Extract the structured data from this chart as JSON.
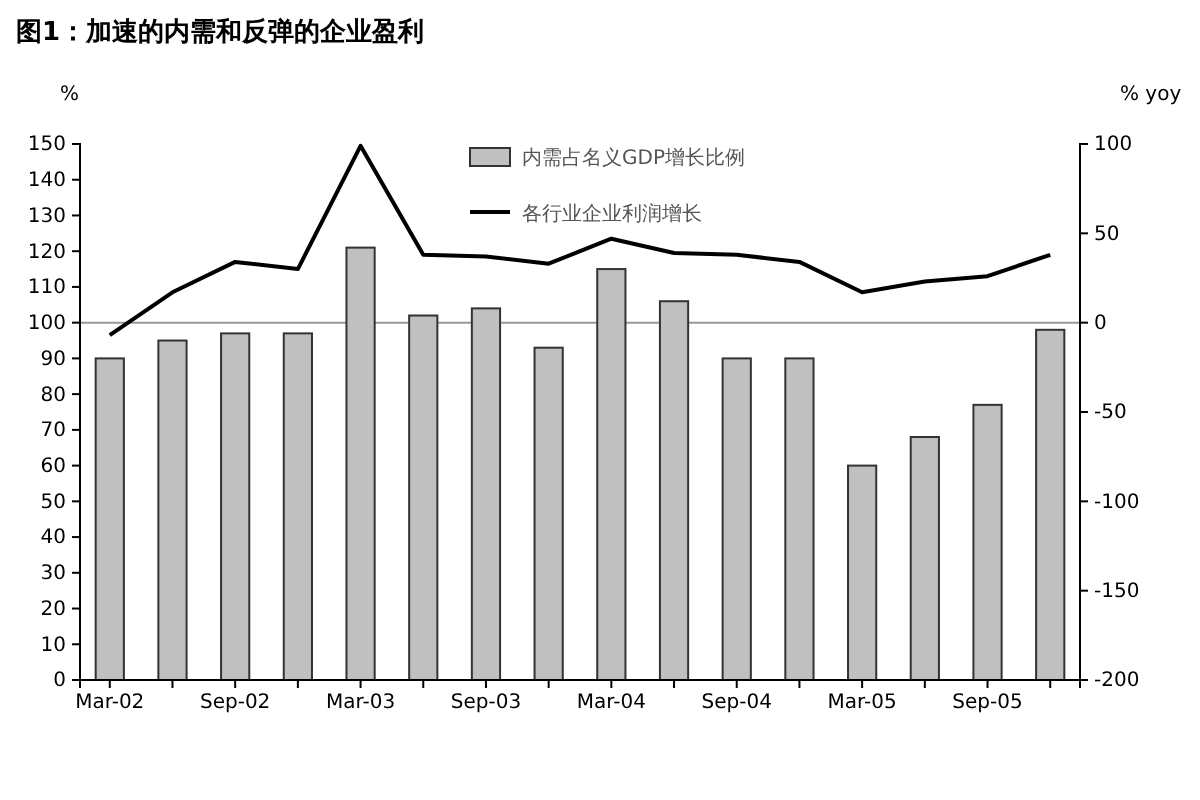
{
  "chart_data": {
    "type": "bar",
    "title": "图1：加速的内需和反弹的企业盈利",
    "ylabel": "%",
    "y2label": "% yoy",
    "categories": [
      "Mar-02",
      null,
      "Sep-02",
      null,
      "Mar-03",
      null,
      "Sep-03",
      null,
      "Mar-04",
      null,
      "Sep-04",
      null,
      "Mar-05",
      null,
      "Sep-05",
      null
    ],
    "series": [
      {
        "name": "内需占名义GDP增长比例",
        "color": "#c0c0c0",
        "values": [
          90,
          95,
          97,
          97,
          121,
          102,
          104,
          93,
          115,
          106,
          90,
          90,
          60,
          68,
          77,
          98
        ]
      },
      {
        "name": "各行业企业利润增长",
        "type": "line",
        "axis": "y2",
        "color": "#000000",
        "values": [
          -7,
          17,
          34,
          30,
          99,
          38,
          37,
          33,
          47,
          39,
          38,
          34,
          17,
          23,
          26,
          38
        ]
      }
    ],
    "ylim": [
      0,
      150
    ],
    "yticks": [
      0,
      10,
      20,
      30,
      40,
      50,
      60,
      70,
      80,
      90,
      100,
      110,
      120,
      130,
      140,
      150
    ],
    "y2lim": [
      -200,
      100
    ],
    "y2ticks": [
      -200,
      -150,
      -100,
      -50,
      0,
      50,
      100
    ],
    "ref_lines": [
      {
        "axis": "y",
        "value": 100,
        "color": "#999999"
      }
    ],
    "legend": "top",
    "grid": false,
    "marker": "none",
    "line_style": "solid"
  }
}
